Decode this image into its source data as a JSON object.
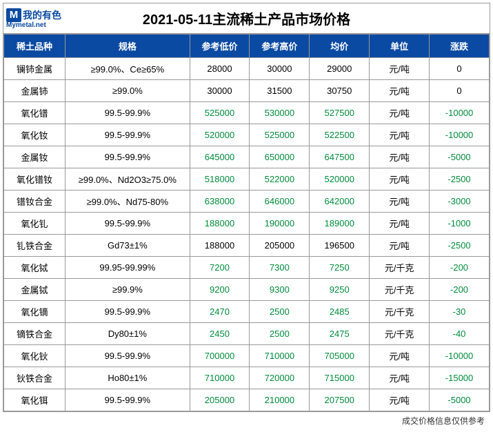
{
  "logo": {
    "letter": "M",
    "cn": "我的有色",
    "sub": "Mymetal.net"
  },
  "title": "2021-05-11主流稀土产品市场价格",
  "columns": [
    "稀土品种",
    "规格",
    "参考低价",
    "参考高价",
    "均价",
    "单位",
    "涨跌"
  ],
  "footer": "成交价格信息仅供参考",
  "colors": {
    "header_bg": "#0b4aa2",
    "header_fg": "#ffffff",
    "green": "#008c3a",
    "border": "#999999",
    "text": "#000000"
  },
  "rows": [
    {
      "prod": "镧铈金属",
      "spec": "≥99.0%、Ce≥65%",
      "low": "28000",
      "high": "30000",
      "avg": "29000",
      "unit": "元/吨",
      "chg": "0",
      "low_c": "black",
      "high_c": "black",
      "avg_c": "black",
      "chg_c": "black"
    },
    {
      "prod": "金属铈",
      "spec": "≥99.0%",
      "low": "30000",
      "high": "31500",
      "avg": "30750",
      "unit": "元/吨",
      "chg": "0",
      "low_c": "black",
      "high_c": "black",
      "avg_c": "black",
      "chg_c": "black"
    },
    {
      "prod": "氧化镨",
      "spec": "99.5-99.9%",
      "low": "525000",
      "high": "530000",
      "avg": "527500",
      "unit": "元/吨",
      "chg": "-10000",
      "low_c": "green",
      "high_c": "green",
      "avg_c": "green",
      "chg_c": "green"
    },
    {
      "prod": "氧化钕",
      "spec": "99.5-99.9%",
      "low": "520000",
      "high": "525000",
      "avg": "522500",
      "unit": "元/吨",
      "chg": "-10000",
      "low_c": "green",
      "high_c": "green",
      "avg_c": "green",
      "chg_c": "green"
    },
    {
      "prod": "金属钕",
      "spec": "99.5-99.9%",
      "low": "645000",
      "high": "650000",
      "avg": "647500",
      "unit": "元/吨",
      "chg": "-5000",
      "low_c": "green",
      "high_c": "green",
      "avg_c": "green",
      "chg_c": "green"
    },
    {
      "prod": "氧化镨钕",
      "spec": "≥99.0%、Nd2O3≥75.0%",
      "low": "518000",
      "high": "522000",
      "avg": "520000",
      "unit": "元/吨",
      "chg": "-2500",
      "low_c": "green",
      "high_c": "green",
      "avg_c": "green",
      "chg_c": "green"
    },
    {
      "prod": "镨钕合金",
      "spec": "≥99.0%、Nd75-80%",
      "low": "638000",
      "high": "646000",
      "avg": "642000",
      "unit": "元/吨",
      "chg": "-3000",
      "low_c": "green",
      "high_c": "green",
      "avg_c": "green",
      "chg_c": "green"
    },
    {
      "prod": "氧化钆",
      "spec": "99.5-99.9%",
      "low": "188000",
      "high": "190000",
      "avg": "189000",
      "unit": "元/吨",
      "chg": "-1000",
      "low_c": "green",
      "high_c": "green",
      "avg_c": "green",
      "chg_c": "green"
    },
    {
      "prod": "钆铁合金",
      "spec": "Gd73±1%",
      "low": "188000",
      "high": "205000",
      "avg": "196500",
      "unit": "元/吨",
      "chg": "-2500",
      "low_c": "black",
      "high_c": "black",
      "avg_c": "black",
      "chg_c": "green"
    },
    {
      "prod": "氧化铽",
      "spec": "99.95-99.99%",
      "low": "7200",
      "high": "7300",
      "avg": "7250",
      "unit": "元/千克",
      "chg": "-200",
      "low_c": "green",
      "high_c": "green",
      "avg_c": "green",
      "chg_c": "green"
    },
    {
      "prod": "金属铽",
      "spec": "≥99.9%",
      "low": "9200",
      "high": "9300",
      "avg": "9250",
      "unit": "元/千克",
      "chg": "-200",
      "low_c": "green",
      "high_c": "green",
      "avg_c": "green",
      "chg_c": "green"
    },
    {
      "prod": "氧化镝",
      "spec": "99.5-99.9%",
      "low": "2470",
      "high": "2500",
      "avg": "2485",
      "unit": "元/千克",
      "chg": "-30",
      "low_c": "green",
      "high_c": "green",
      "avg_c": "green",
      "chg_c": "green"
    },
    {
      "prod": "镝铁合金",
      "spec": "Dy80±1%",
      "low": "2450",
      "high": "2500",
      "avg": "2475",
      "unit": "元/千克",
      "chg": "-40",
      "low_c": "green",
      "high_c": "green",
      "avg_c": "green",
      "chg_c": "green"
    },
    {
      "prod": "氧化钬",
      "spec": "99.5-99.9%",
      "low": "700000",
      "high": "710000",
      "avg": "705000",
      "unit": "元/吨",
      "chg": "-10000",
      "low_c": "green",
      "high_c": "green",
      "avg_c": "green",
      "chg_c": "green"
    },
    {
      "prod": "钬铁合金",
      "spec": "Ho80±1%",
      "low": "710000",
      "high": "720000",
      "avg": "715000",
      "unit": "元/吨",
      "chg": "-15000",
      "low_c": "green",
      "high_c": "green",
      "avg_c": "green",
      "chg_c": "green"
    },
    {
      "prod": "氧化铒",
      "spec": "99.5-99.9%",
      "low": "205000",
      "high": "210000",
      "avg": "207500",
      "unit": "元/吨",
      "chg": "-5000",
      "low_c": "green",
      "high_c": "green",
      "avg_c": "green",
      "chg_c": "green"
    }
  ]
}
